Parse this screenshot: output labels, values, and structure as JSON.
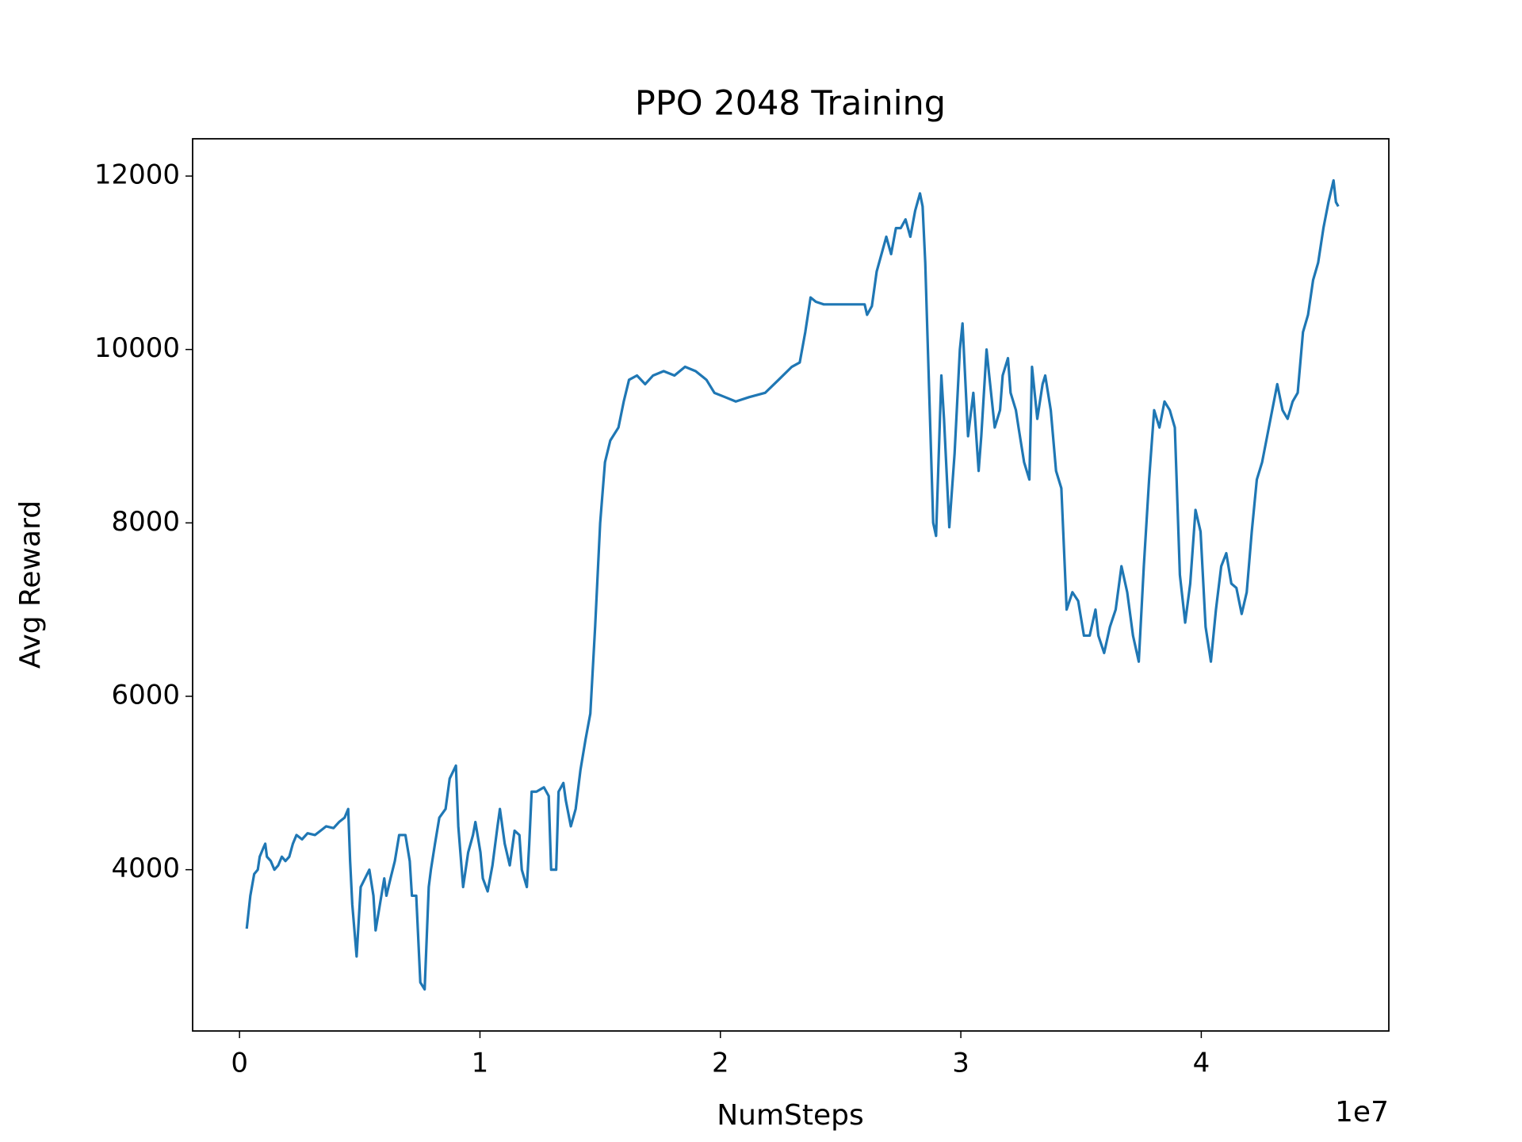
{
  "chart_data": {
    "type": "line",
    "title": "PPO 2048 Training",
    "xlabel": "NumSteps",
    "ylabel": "Avg Reward",
    "x_offset_label": "1e7",
    "xlim": [
      -1950000,
      47800000
    ],
    "ylim": [
      2140,
      12430
    ],
    "xticks": [
      0,
      {
        "value": 10000000,
        "label": "1"
      },
      {
        "value": 20000000,
        "label": "2"
      },
      {
        "value": 30000000,
        "label": "3"
      },
      {
        "value": 40000000,
        "label": "4"
      }
    ],
    "yticks": [
      4000,
      6000,
      8000,
      10000,
      12000
    ],
    "grid": false,
    "x": [
      300000,
      450000,
      610000,
      760000,
      840000,
      990000,
      1070000,
      1140000,
      1300000,
      1450000,
      1610000,
      1760000,
      1910000,
      2070000,
      2220000,
      2370000,
      2600000,
      2830000,
      3140000,
      3370000,
      3600000,
      3910000,
      4140000,
      4370000,
      4520000,
      4600000,
      4690000,
      4870000,
      5040000,
      5220000,
      5400000,
      5570000,
      5660000,
      5840000,
      6020000,
      6110000,
      6280000,
      6460000,
      6640000,
      6900000,
      7080000,
      7170000,
      7350000,
      7520000,
      7700000,
      7870000,
      7960000,
      8130000,
      8310000,
      8570000,
      8740000,
      9000000,
      9100000,
      9300000,
      9510000,
      9710000,
      9810000,
      10020000,
      10120000,
      10320000,
      10520000,
      10730000,
      10830000,
      11030000,
      11240000,
      11440000,
      11640000,
      11740000,
      11950000,
      12050000,
      12150000,
      12350000,
      12660000,
      12860000,
      12960000,
      13170000,
      13270000,
      13470000,
      13570000,
      13780000,
      13980000,
      14180000,
      14390000,
      14590000,
      14790000,
      15000000,
      15200000,
      15420000,
      15760000,
      15980000,
      16200000,
      16530000,
      16870000,
      17200000,
      17640000,
      18090000,
      18530000,
      18970000,
      19420000,
      19750000,
      20200000,
      20640000,
      21190000,
      21860000,
      22420000,
      22970000,
      23300000,
      23530000,
      23750000,
      23970000,
      24300000,
      26000000,
      26100000,
      26300000,
      26500000,
      26700000,
      26900000,
      27100000,
      27300000,
      27500000,
      27700000,
      27900000,
      28100000,
      28300000,
      28410000,
      28520000,
      28630000,
      28740000,
      28850000,
      28970000,
      29190000,
      29300000,
      29520000,
      29740000,
      29960000,
      30070000,
      30300000,
      30520000,
      30740000,
      30850000,
      31070000,
      31180000,
      31410000,
      31630000,
      31740000,
      31960000,
      32070000,
      32290000,
      32400000,
      32630000,
      32850000,
      32960000,
      33180000,
      33400000,
      33510000,
      33740000,
      33960000,
      34180000,
      34400000,
      34640000,
      34880000,
      35120000,
      35360000,
      35600000,
      35720000,
      35960000,
      36200000,
      36440000,
      36680000,
      36920000,
      37160000,
      37400000,
      37610000,
      37830000,
      38040000,
      38260000,
      38470000,
      38690000,
      38900000,
      39110000,
      39330000,
      39540000,
      39760000,
      39970000,
      40180000,
      40400000,
      40610000,
      40830000,
      41040000,
      41250000,
      41460000,
      41680000,
      41890000,
      42100000,
      42310000,
      42530000,
      42740000,
      42950000,
      43160000,
      43380000,
      43590000,
      43800000,
      44010000,
      44230000,
      44440000,
      44650000,
      44860000,
      45080000,
      45290000,
      45500000,
      45600000,
      45700000
    ],
    "series": [
      {
        "name": "Avg Reward",
        "color": "#1f77b4",
        "values": [
          3320,
          3700,
          3950,
          4000,
          4150,
          4250,
          4300,
          4150,
          4100,
          4000,
          4050,
          4150,
          4100,
          4150,
          4300,
          4400,
          4350,
          4420,
          4400,
          4450,
          4500,
          4480,
          4550,
          4600,
          4700,
          4100,
          3600,
          3000,
          3800,
          3900,
          4000,
          3700,
          3300,
          3600,
          3900,
          3700,
          3900,
          4100,
          4400,
          4400,
          4100,
          3700,
          3700,
          2700,
          2620,
          3800,
          4000,
          4300,
          4600,
          4700,
          5050,
          5200,
          4500,
          3800,
          4200,
          4400,
          4550,
          4200,
          3900,
          3750,
          4050,
          4500,
          4700,
          4300,
          4050,
          4450,
          4400,
          4000,
          3800,
          4300,
          4900,
          4900,
          4950,
          4850,
          4000,
          4000,
          4900,
          5000,
          4800,
          4500,
          4700,
          5150,
          5500,
          5800,
          6800,
          8000,
          8700,
          8950,
          9100,
          9400,
          9650,
          9700,
          9600,
          9700,
          9750,
          9700,
          9800,
          9750,
          9650,
          9500,
          9450,
          9400,
          9450,
          9500,
          9650,
          9800,
          9850,
          10200,
          10600,
          10550,
          10520,
          10520,
          10400,
          10500,
          10900,
          11100,
          11300,
          11100,
          11400,
          11400,
          11500,
          11300,
          11600,
          11800,
          11650,
          11000,
          10000,
          9000,
          8000,
          7850,
          9700,
          9200,
          7950,
          8800,
          10000,
          10300,
          9000,
          9500,
          8600,
          9000,
          10000,
          9700,
          9100,
          9300,
          9700,
          9900,
          9500,
          9300,
          9100,
          8700,
          8500,
          9800,
          9200,
          9600,
          9700,
          9300,
          8600,
          8400,
          7000,
          7200,
          7100,
          6700,
          6700,
          7000,
          6700,
          6500,
          6800,
          7000,
          7500,
          7200,
          6700,
          6400,
          7500,
          8500,
          9300,
          9100,
          9400,
          9300,
          9100,
          7400,
          6850,
          7300,
          8150,
          7900,
          6800,
          6400,
          7000,
          7500,
          7650,
          7300,
          7250,
          6950,
          7200,
          7900,
          8500,
          8700,
          9000,
          9300,
          9600,
          9300,
          9200,
          9400,
          9500,
          10200,
          10400,
          10800,
          11000,
          11400,
          11700,
          11950,
          11700,
          11650
        ]
      }
    ]
  }
}
